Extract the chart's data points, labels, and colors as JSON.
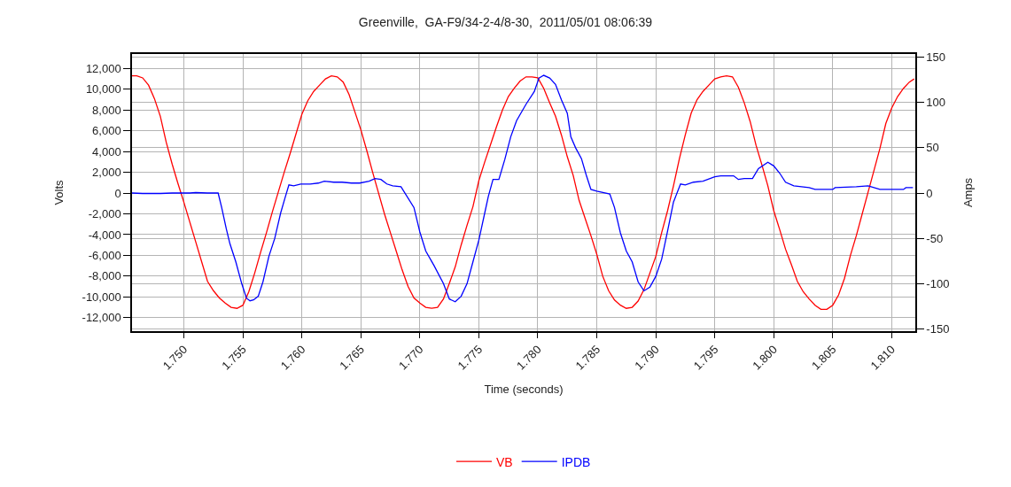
{
  "chart_data": {
    "type": "line",
    "title": "Greenville,  GA-F9/34-2-4/8-30,  2011/05/01 08:06:39",
    "xlabel": "Time (seconds)",
    "ylabel": "Volts",
    "y2label": "Amps",
    "xlim": [
      1.7456,
      1.812
    ],
    "xticks": [
      {
        "value": 1.75,
        "label": "1.750"
      },
      {
        "value": 1.755,
        "label": "1.755"
      },
      {
        "value": 1.76,
        "label": "1.760"
      },
      {
        "value": 1.765,
        "label": "1.765"
      },
      {
        "value": 1.77,
        "label": "1.770"
      },
      {
        "value": 1.775,
        "label": "1.775"
      },
      {
        "value": 1.78,
        "label": "1.780"
      },
      {
        "value": 1.785,
        "label": "1.785"
      },
      {
        "value": 1.79,
        "label": "1.790"
      },
      {
        "value": 1.795,
        "label": "1.795"
      },
      {
        "value": 1.8,
        "label": "1.800"
      },
      {
        "value": 1.805,
        "label": "1.805"
      },
      {
        "value": 1.81,
        "label": "1.810"
      }
    ],
    "ylim": [
      -13300,
      13400
    ],
    "yticks": [
      {
        "value": -12000,
        "label": "-12,000"
      },
      {
        "value": -10000,
        "label": "-10,000"
      },
      {
        "value": -8000,
        "label": "-8,000"
      },
      {
        "value": -6000,
        "label": "-6,000"
      },
      {
        "value": -4000,
        "label": "-4,000"
      },
      {
        "value": -2000,
        "label": "-2,000"
      },
      0,
      {
        "value": 2000,
        "label": "2,000"
      },
      {
        "value": 4000,
        "label": "4,000"
      },
      {
        "value": 6000,
        "label": "6,000"
      },
      {
        "value": 8000,
        "label": "8,000"
      },
      {
        "value": 10000,
        "label": "10,000"
      },
      {
        "value": 12000,
        "label": "12,000"
      }
    ],
    "y2lim": [
      -152.5,
      153.5
    ],
    "y2ticks": [
      -150,
      -100,
      -50,
      0,
      50,
      100,
      150
    ],
    "grid": true,
    "legend": "bottom",
    "marker": "none",
    "line_style": "solid",
    "series": [
      {
        "name": "VB",
        "color": "#ff0000",
        "x": [
          1.7456,
          1.746,
          1.7465,
          1.747,
          1.7475,
          1.748,
          1.7485,
          1.749,
          1.7495,
          1.75,
          1.7505,
          1.751,
          1.7515,
          1.752,
          1.7525,
          1.753,
          1.7535,
          1.754,
          1.7545,
          1.755,
          1.7555,
          1.756,
          1.7565,
          1.757,
          1.7575,
          1.758,
          1.7585,
          1.759,
          1.7595,
          1.76,
          1.7605,
          1.761,
          1.7615,
          1.762,
          1.7625,
          1.763,
          1.7635,
          1.764,
          1.7645,
          1.765,
          1.7655,
          1.766,
          1.7665,
          1.767,
          1.7675,
          1.768,
          1.7685,
          1.769,
          1.7695,
          1.77,
          1.7705,
          1.771,
          1.7715,
          1.772,
          1.7725,
          1.773,
          1.7735,
          1.774,
          1.7745,
          1.775,
          1.7755,
          1.776,
          1.7765,
          1.777,
          1.7775,
          1.778,
          1.7785,
          1.779,
          1.7795,
          1.78,
          1.7805,
          1.781,
          1.7815,
          1.782,
          1.7825,
          1.783,
          1.7835,
          1.784,
          1.7845,
          1.785,
          1.7855,
          1.786,
          1.7865,
          1.787,
          1.7875,
          1.788,
          1.7885,
          1.789,
          1.7895,
          1.79,
          1.7905,
          1.791,
          1.7915,
          1.792,
          1.7925,
          1.793,
          1.7935,
          1.794,
          1.7945,
          1.795,
          1.7955,
          1.796,
          1.7965,
          1.797,
          1.7975,
          1.798,
          1.7985,
          1.799,
          1.7995,
          1.8,
          1.8005,
          1.801,
          1.8015,
          1.802,
          1.8025,
          1.803,
          1.8035,
          1.804,
          1.8045,
          1.805,
          1.8055,
          1.806,
          1.8065,
          1.807,
          1.8075,
          1.808,
          1.8085,
          1.809,
          1.8095,
          1.81,
          1.8105,
          1.811,
          1.8115,
          1.8119
        ],
        "values": [
          11300,
          11300,
          11100,
          10400,
          9100,
          7400,
          4900,
          2800,
          900,
          -900,
          -2800,
          -4700,
          -6600,
          -8500,
          -9400,
          -10100,
          -10600,
          -11000,
          -11100,
          -10800,
          -9500,
          -7700,
          -5700,
          -3800,
          -1800,
          100,
          2000,
          3800,
          5700,
          7600,
          8900,
          9800,
          10400,
          11000,
          11300,
          11200,
          10700,
          9500,
          7800,
          6100,
          4100,
          2000,
          0,
          -2000,
          -3800,
          -5600,
          -7400,
          -9000,
          -10100,
          -10600,
          -11000,
          -11100,
          -11000,
          -10200,
          -8700,
          -7100,
          -5000,
          -3100,
          -1300,
          1200,
          3000,
          4700,
          6400,
          8000,
          9300,
          10100,
          10800,
          11200,
          11200,
          11100,
          10100,
          8700,
          7400,
          5600,
          3500,
          1700,
          -700,
          -2400,
          -4100,
          -5900,
          -8000,
          -9400,
          -10300,
          -10800,
          -11100,
          -11000,
          -10400,
          -9300,
          -7700,
          -6100,
          -3800,
          -1700,
          700,
          3300,
          5600,
          7700,
          9000,
          9800,
          10400,
          11000,
          11200,
          11300,
          11200,
          10200,
          8700,
          6900,
          4600,
          2700,
          700,
          -1700,
          -3500,
          -5400,
          -6900,
          -8500,
          -9500,
          -10200,
          -10800,
          -11200,
          -11200,
          -10800,
          -9800,
          -8200,
          -6000,
          -4100,
          -2000,
          100,
          2200,
          4300,
          6700,
          8200,
          9300,
          10100,
          10700,
          11000
        ]
      },
      {
        "name": "IPDB",
        "color": "#0000ff",
        "axis": "y2",
        "x": [
          1.7456,
          1.7465,
          1.747,
          1.748,
          1.749,
          1.7505,
          1.751,
          1.752,
          1.7529,
          1.7532,
          1.7536,
          1.7539,
          1.7544,
          1.7549,
          1.7553,
          1.7556,
          1.7559,
          1.7563,
          1.7567,
          1.7572,
          1.7577,
          1.7582,
          1.7586,
          1.7589,
          1.7593,
          1.7599,
          1.7607,
          1.7614,
          1.7619,
          1.7627,
          1.7634,
          1.7642,
          1.7649,
          1.7657,
          1.7662,
          1.7667,
          1.7672,
          1.7677,
          1.7684,
          1.7695,
          1.77,
          1.7705,
          1.7712,
          1.772,
          1.7725,
          1.773,
          1.7735,
          1.774,
          1.7745,
          1.775,
          1.7755,
          1.7758,
          1.7762,
          1.7767,
          1.7772,
          1.7777,
          1.7782,
          1.779,
          1.7797,
          1.7801,
          1.7805,
          1.781,
          1.7815,
          1.782,
          1.7825,
          1.7828,
          1.7832,
          1.7837,
          1.7841,
          1.7845,
          1.785,
          1.7861,
          1.7865,
          1.787,
          1.7875,
          1.788,
          1.7885,
          1.789,
          1.7895,
          1.79,
          1.7905,
          1.791,
          1.7915,
          1.7921,
          1.7925,
          1.7932,
          1.794,
          1.795,
          1.7955,
          1.7966,
          1.797,
          1.7975,
          1.7982,
          1.7987,
          1.7995,
          1.8,
          1.8005,
          1.801,
          1.8017,
          1.803,
          1.8035,
          1.805,
          1.8052,
          1.807,
          1.808,
          1.809,
          1.811,
          1.8112,
          1.8118
        ],
        "values": [
          0,
          -0.5,
          -0.5,
          -0.5,
          0,
          0,
          0.5,
          0,
          0,
          -16,
          -40,
          -56,
          -76,
          -100,
          -116,
          -119,
          -118,
          -114,
          -98,
          -70,
          -50,
          -22,
          -4,
          9,
          8,
          10,
          10,
          11,
          13,
          12,
          12,
          11,
          11,
          13,
          16,
          15,
          10,
          8,
          7,
          -16,
          -43,
          -64,
          -80,
          -100,
          -117,
          -120,
          -114,
          -100,
          -76,
          -52,
          -22,
          -4,
          15,
          15,
          37,
          62,
          80,
          98,
          112,
          127,
          130,
          127,
          120,
          103,
          88,
          62,
          50,
          38,
          20,
          4,
          2,
          -1,
          -16,
          -44,
          -64,
          -76,
          -98,
          -108,
          -104,
          -92,
          -73,
          -42,
          -10,
          10,
          9,
          12,
          13,
          18,
          19,
          19,
          15,
          16,
          16,
          27,
          34,
          30,
          22,
          12,
          8,
          6,
          4,
          4,
          6,
          7,
          8,
          4,
          4,
          6,
          6
        ]
      }
    ]
  }
}
